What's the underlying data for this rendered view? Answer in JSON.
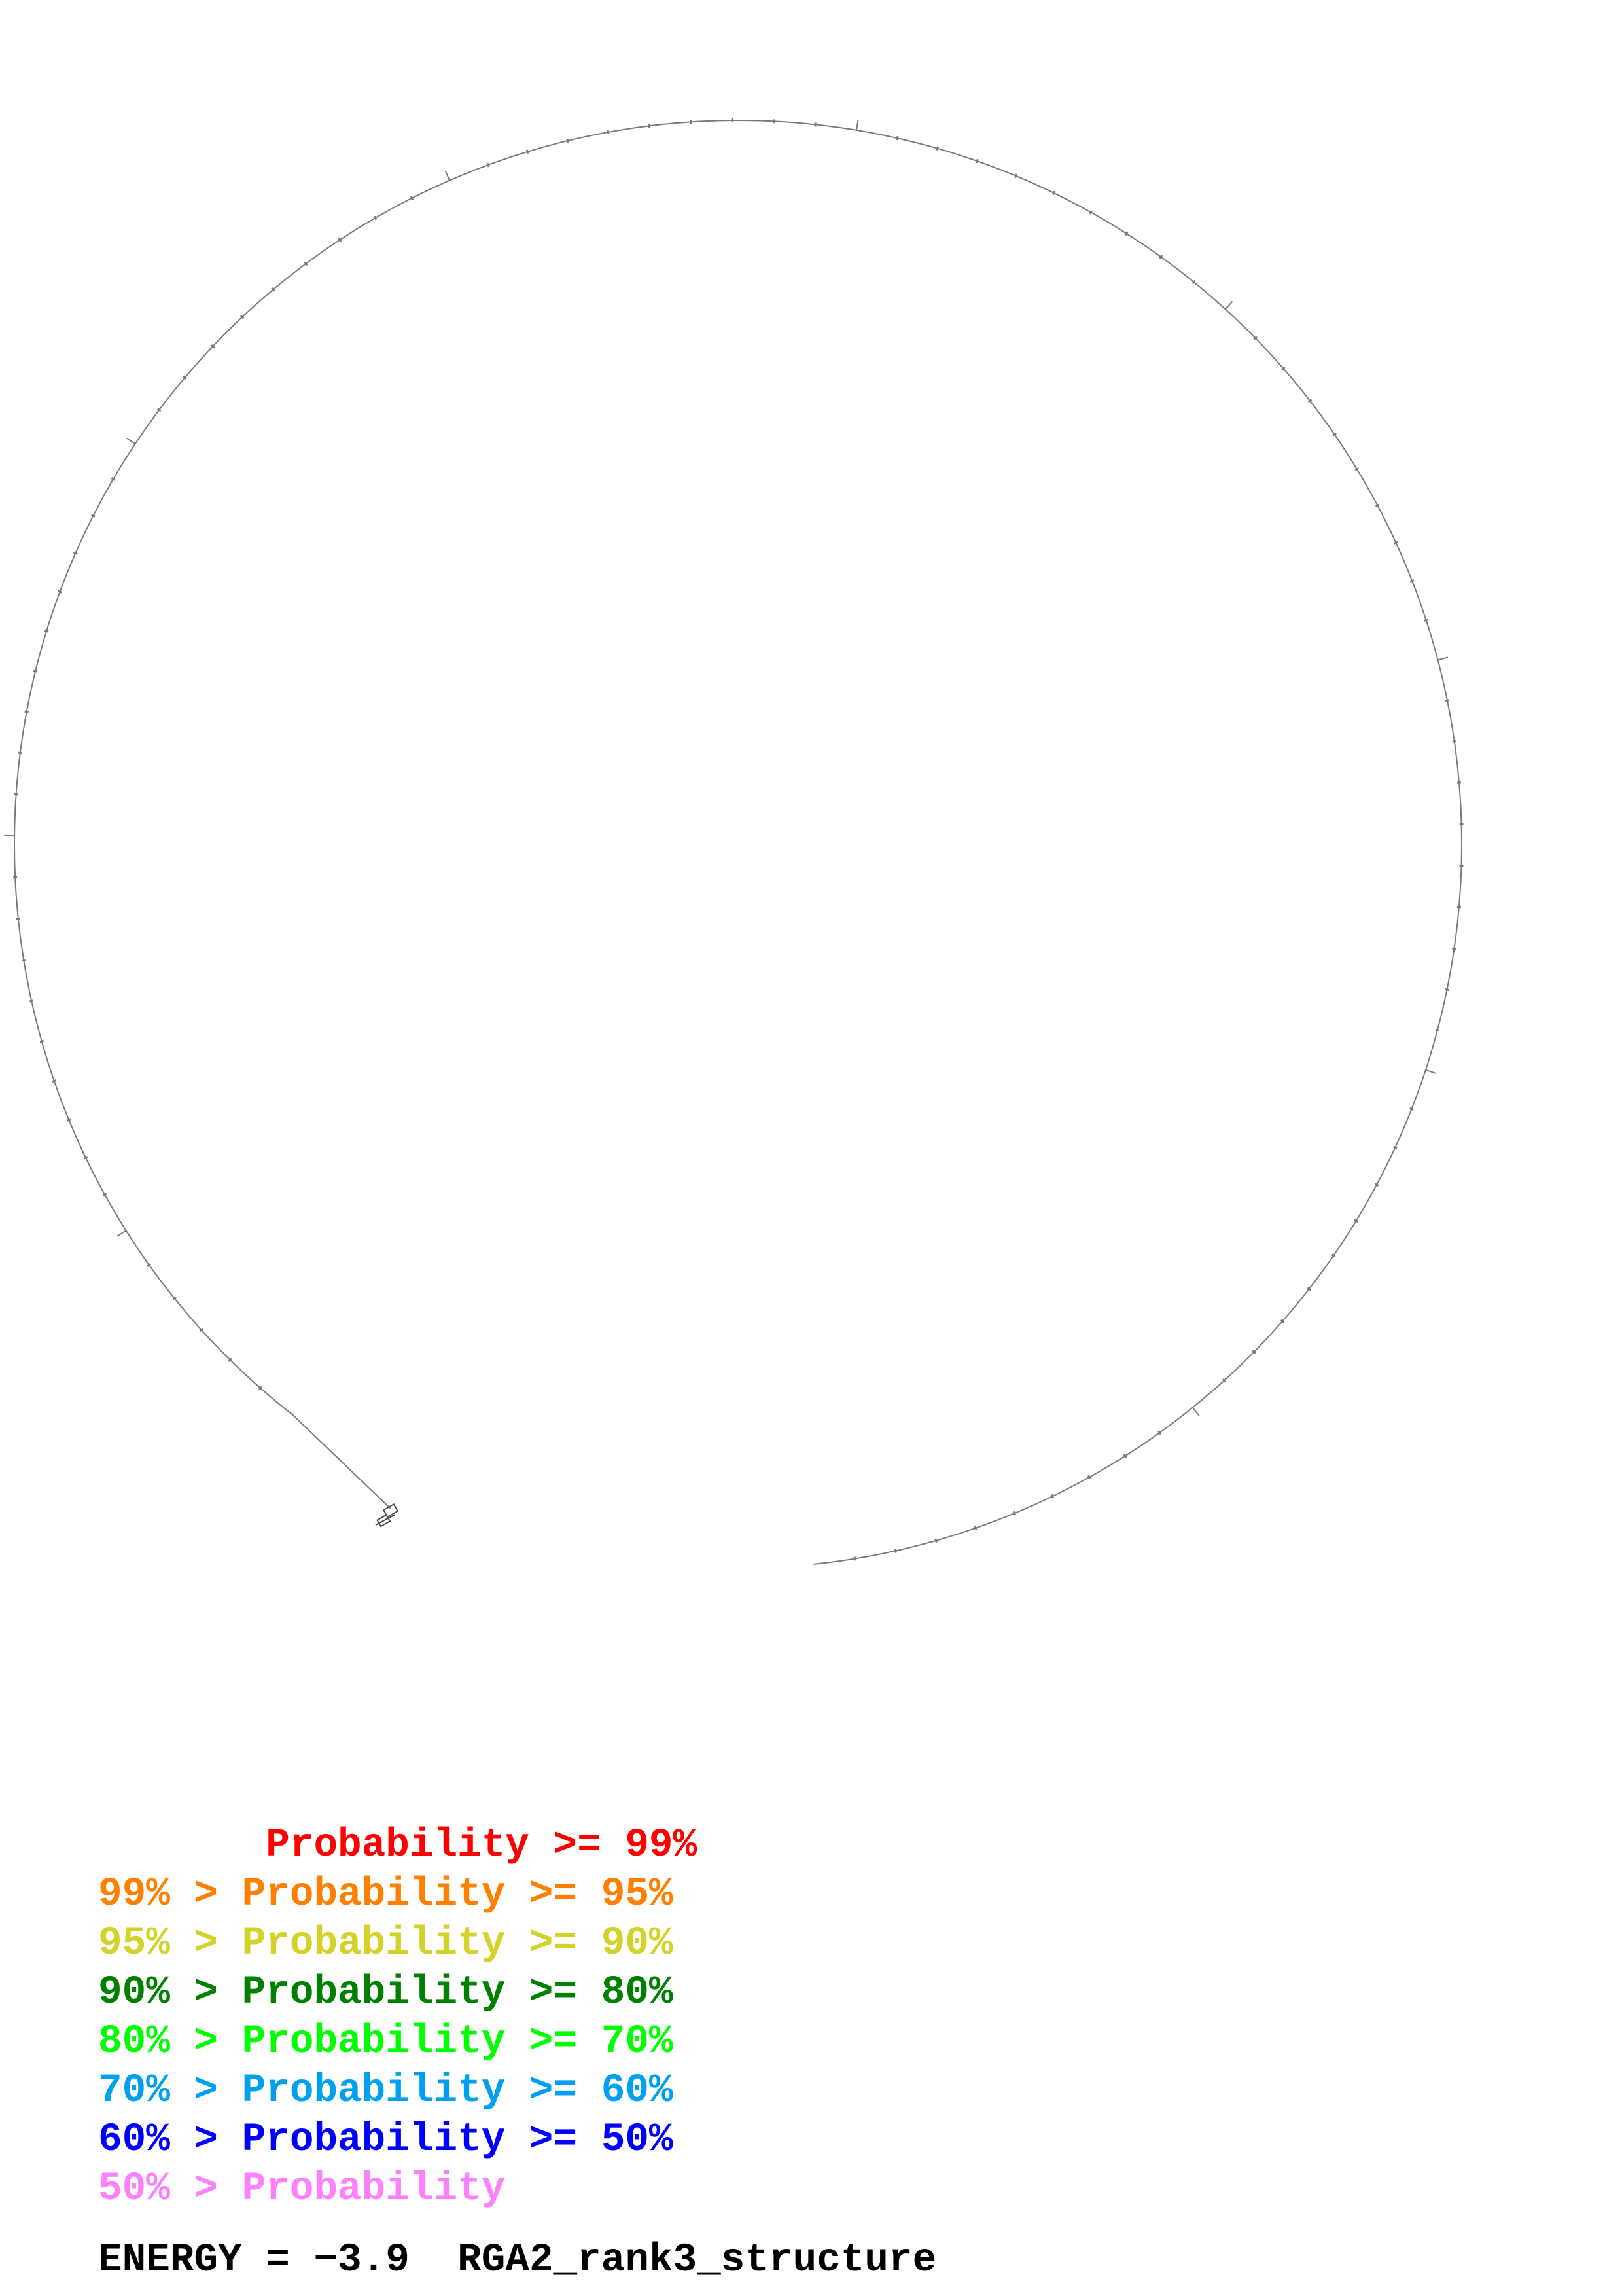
{
  "legend": [
    {
      "text": "       Probability >= 99%",
      "color": "#ff0000"
    },
    {
      "text": "99% > Probability >= 95%",
      "color": "#ff8000"
    },
    {
      "text": "95% > Probability >= 90%",
      "color": "#d2d228"
    },
    {
      "text": "90% > Probability >= 80%",
      "color": "#008000"
    },
    {
      "text": "80% > Probability >= 70%",
      "color": "#00ff00"
    },
    {
      "text": "70% > Probability >= 60%",
      "color": "#00a0f0"
    },
    {
      "text": "60% > Probability >= 50%",
      "color": "#0000ff"
    },
    {
      "text": "50% > Probability",
      "color": "#ff80ff"
    }
  ],
  "footer": {
    "energy_label": "ENERGY = ",
    "energy_value": "−3.9",
    "structure_name": "RGA2_rank3_structure",
    "text_color": "#000000"
  },
  "backbone": {
    "stroke_color": "#777777"
  }
}
